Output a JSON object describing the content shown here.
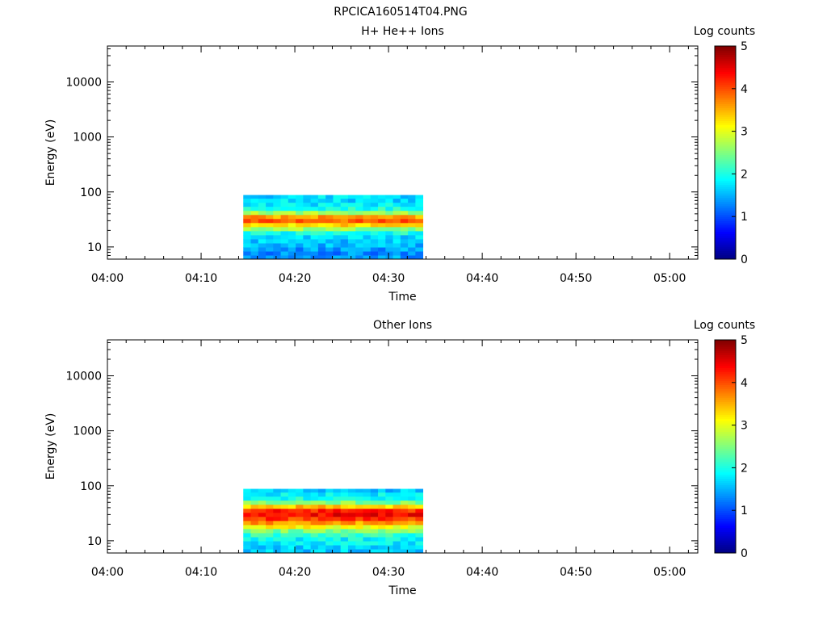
{
  "file_title": "RPCICA160514T04.PNG",
  "chart_data": [
    {
      "type": "heatmap",
      "title": "H+ He++ Ions",
      "xlabel": "Time",
      "ylabel": "Energy (eV)",
      "y_scale": "log",
      "ylim": [
        6,
        45000
      ],
      "xlim": [
        "04:00",
        "05:03"
      ],
      "x_ticks": [
        "04:00",
        "04:10",
        "04:20",
        "04:30",
        "04:40",
        "04:50",
        "05:00"
      ],
      "y_ticks": [
        "10",
        "100",
        "1000",
        "10000"
      ],
      "colorbar": {
        "label": "Log counts",
        "range": [
          0,
          5
        ],
        "ticks": [
          "0",
          "1",
          "2",
          "3",
          "4",
          "5"
        ]
      },
      "data_time_range": [
        "04:14:30",
        "04:33:40"
      ],
      "energy_levels": [
        6.5,
        7.7,
        9.1,
        10.8,
        12.8,
        15.2,
        18,
        21.3,
        25.3,
        30,
        35.5,
        42,
        50,
        59.2,
        70,
        83
      ],
      "mean_log_counts_profile": [
        1.4,
        1.3,
        1.4,
        1.5,
        1.6,
        1.7,
        2.0,
        2.6,
        3.3,
        3.9,
        3.6,
        2.7,
        2.0,
        1.8,
        1.7,
        1.7
      ]
    },
    {
      "type": "heatmap",
      "title": "Other Ions",
      "xlabel": "Time",
      "ylabel": "Energy (eV)",
      "y_scale": "log",
      "ylim": [
        6,
        45000
      ],
      "xlim": [
        "04:00",
        "05:03"
      ],
      "x_ticks": [
        "04:00",
        "04:10",
        "04:20",
        "04:30",
        "04:40",
        "04:50",
        "05:00"
      ],
      "y_ticks": [
        "10",
        "100",
        "1000",
        "10000"
      ],
      "colorbar": {
        "label": "Log counts",
        "range": [
          0,
          5
        ],
        "ticks": [
          "0",
          "1",
          "2",
          "3",
          "4",
          "5"
        ]
      },
      "data_time_range": [
        "04:14:30",
        "04:33:40"
      ],
      "energy_levels": [
        6.5,
        7.7,
        9.1,
        10.8,
        12.8,
        15.2,
        18,
        21.3,
        25.3,
        30,
        35.5,
        42,
        50,
        59.2,
        70,
        83
      ],
      "mean_log_counts_profile": [
        1.6,
        1.7,
        1.8,
        1.9,
        2.1,
        2.5,
        3.1,
        3.6,
        4.1,
        4.4,
        4.2,
        3.4,
        2.5,
        2.0,
        1.8,
        1.6
      ]
    }
  ]
}
